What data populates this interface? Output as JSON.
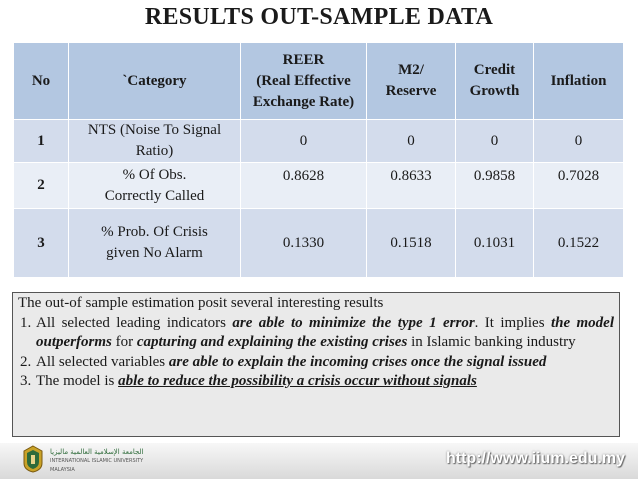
{
  "title": "RESULTS OUT-SAMPLE DATA",
  "table": {
    "headers": [
      "No",
      "`Category",
      "REER\n(Real Effective Exchange Rate)",
      "M2/ Reserve",
      "Credit Growth",
      "Inflation"
    ],
    "header_reer": {
      "line1": "REER",
      "line2": "(Real Effective",
      "line3": "Exchange Rate)"
    },
    "header_m2": {
      "line1": "M2/",
      "line2": "Reserve"
    },
    "header_credit": {
      "line1": "Credit",
      "line2": "Growth"
    },
    "rows": [
      {
        "no": "1",
        "category_line1": "NTS (Noise To Signal",
        "category_line2": "Ratio)",
        "reer": "0",
        "m2": "0",
        "credit": "0",
        "inflation": "0"
      },
      {
        "no": "2",
        "category_line1": "% Of Obs.",
        "category_line2": "Correctly Called",
        "reer": "0.8628",
        "m2": "0.8633",
        "credit": "0.9858",
        "inflation": "0.7028"
      },
      {
        "no": "3",
        "category_line1": "% Prob. Of Crisis",
        "category_line2": "given No Alarm",
        "reer": "0.1330",
        "m2": "0.1518",
        "credit": "0.1031",
        "inflation": "0.1522"
      }
    ]
  },
  "notes": {
    "intro": "The out-of sample estimation posit several interesting results",
    "item1": {
      "t1": "All selected leading indicators ",
      "b1": "are able to minimize the type 1 error",
      "t2": ". It implies ",
      "b2": "the model outperforms",
      "t3": " for ",
      "b3": "capturing and explaining the existing crises",
      "t4": " in Islamic banking industry"
    },
    "item2": {
      "t1": "All selected variables ",
      "b1": "are able to explain the incoming crises once the signal issued"
    },
    "item3": {
      "t1": "The model is ",
      "b1": "able to reduce the possibility a crisis occur without signals"
    }
  },
  "footer": {
    "logo_text_ar": "الجامعة الإسلامية العالمية ماليزيا",
    "logo_text_en": "INTERNATIONAL ISLAMIC UNIVERSITY MALAYSIA",
    "url": "http://www.iium.edu.my"
  }
}
